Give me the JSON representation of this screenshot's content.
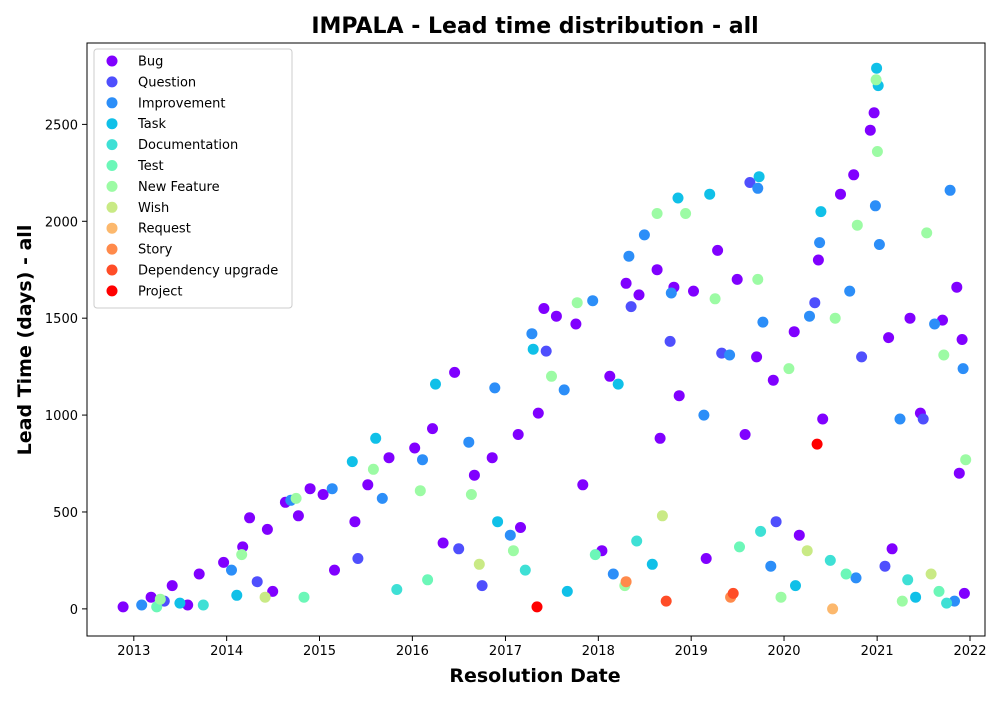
{
  "chart_data": {
    "type": "scatter",
    "title": "IMPALA - Lead time distribution - all",
    "xlabel": "Resolution Date",
    "ylabel": "Lead Time (days) - all",
    "xlim": [
      "2012-07-01",
      "2022-03-01"
    ],
    "ylim": [
      -140,
      2920
    ],
    "x_ticks": [
      "2013",
      "2014",
      "2015",
      "2016",
      "2017",
      "2018",
      "2019",
      "2020",
      "2021",
      "2022"
    ],
    "y_ticks": [
      0,
      500,
      1000,
      1500,
      2000,
      2500
    ],
    "grid": false,
    "legend_position": "top-left",
    "series": [
      {
        "name": "Bug",
        "color": "#8000ff",
        "points": [
          [
            "2012-11-20",
            10
          ],
          [
            "2013-03-10",
            60
          ],
          [
            "2013-06-01",
            120
          ],
          [
            "2013-09-15",
            180
          ],
          [
            "2013-12-20",
            240
          ],
          [
            "2014-03-05",
            320
          ],
          [
            "2014-04-01",
            470
          ],
          [
            "2014-06-10",
            410
          ],
          [
            "2014-08-20",
            550
          ],
          [
            "2014-10-10",
            480
          ],
          [
            "2014-11-25",
            620
          ],
          [
            "2015-01-15",
            590
          ],
          [
            "2015-05-20",
            450
          ],
          [
            "2015-07-10",
            640
          ],
          [
            "2015-10-01",
            780
          ],
          [
            "2016-01-10",
            830
          ],
          [
            "2016-03-20",
            930
          ],
          [
            "2016-06-15",
            1220
          ],
          [
            "2016-09-01",
            690
          ],
          [
            "2016-11-10",
            780
          ],
          [
            "2017-02-20",
            900
          ],
          [
            "2017-05-10",
            1010
          ],
          [
            "2017-06-01",
            1550
          ],
          [
            "2017-07-20",
            1510
          ],
          [
            "2017-10-05",
            1470
          ],
          [
            "2018-02-15",
            1200
          ],
          [
            "2018-04-20",
            1680
          ],
          [
            "2018-06-10",
            1620
          ],
          [
            "2018-08-20",
            1750
          ],
          [
            "2018-10-25",
            1660
          ],
          [
            "2018-11-15",
            1100
          ],
          [
            "2019-01-10",
            1640
          ],
          [
            "2019-04-15",
            1850
          ],
          [
            "2019-07-01",
            1700
          ],
          [
            "2019-09-15",
            1300
          ],
          [
            "2019-11-20",
            1180
          ],
          [
            "2020-02-10",
            1430
          ],
          [
            "2020-05-15",
            1800
          ],
          [
            "2020-08-10",
            2140
          ],
          [
            "2020-10-01",
            2240
          ],
          [
            "2020-12-05",
            2470
          ],
          [
            "2020-12-20",
            2560
          ],
          [
            "2021-02-15",
            1400
          ],
          [
            "2021-05-10",
            1500
          ],
          [
            "2021-06-20",
            1010
          ],
          [
            "2021-09-15",
            1490
          ],
          [
            "2021-11-10",
            1660
          ],
          [
            "2021-12-01",
            1390
          ],
          [
            "2021-11-20",
            700
          ],
          [
            "2013-08-01",
            20
          ],
          [
            "2014-07-01",
            90
          ],
          [
            "2015-03-01",
            200
          ],
          [
            "2016-05-01",
            340
          ],
          [
            "2017-03-01",
            420
          ],
          [
            "2018-01-15",
            300
          ],
          [
            "2019-03-01",
            260
          ],
          [
            "2020-03-01",
            380
          ],
          [
            "2021-03-01",
            310
          ],
          [
            "2021-12-10",
            80
          ],
          [
            "2017-11-01",
            640
          ],
          [
            "2019-08-01",
            900
          ],
          [
            "2020-06-01",
            980
          ],
          [
            "2018-09-01",
            880
          ]
        ]
      },
      {
        "name": "Question",
        "color": "#4f4ffd",
        "points": [
          [
            "2013-05-01",
            40
          ],
          [
            "2014-05-01",
            140
          ],
          [
            "2015-06-01",
            260
          ],
          [
            "2016-07-01",
            310
          ],
          [
            "2017-06-10",
            1330
          ],
          [
            "2018-05-10",
            1560
          ],
          [
            "2018-10-10",
            1380
          ],
          [
            "2019-05-01",
            1320
          ],
          [
            "2019-08-20",
            2200
          ],
          [
            "2020-05-01",
            1580
          ],
          [
            "2020-11-01",
            1300
          ],
          [
            "2021-07-01",
            980
          ],
          [
            "2016-10-01",
            120
          ],
          [
            "2019-12-01",
            450
          ],
          [
            "2021-02-01",
            220
          ]
        ]
      },
      {
        "name": "Improvement",
        "color": "#2c8ef8",
        "points": [
          [
            "2013-02-01",
            20
          ],
          [
            "2014-01-20",
            200
          ],
          [
            "2014-09-10",
            560
          ],
          [
            "2015-02-20",
            620
          ],
          [
            "2015-09-05",
            570
          ],
          [
            "2016-02-10",
            770
          ],
          [
            "2016-08-10",
            860
          ],
          [
            "2016-11-20",
            1140
          ],
          [
            "2017-04-15",
            1420
          ],
          [
            "2017-08-20",
            1130
          ],
          [
            "2017-12-10",
            1590
          ],
          [
            "2018-05-01",
            1820
          ],
          [
            "2018-07-01",
            1930
          ],
          [
            "2018-10-15",
            1630
          ],
          [
            "2019-02-20",
            1000
          ],
          [
            "2019-06-01",
            1310
          ],
          [
            "2019-09-20",
            2170
          ],
          [
            "2019-10-10",
            1480
          ],
          [
            "2020-04-10",
            1510
          ],
          [
            "2020-05-20",
            1890
          ],
          [
            "2020-09-15",
            1640
          ],
          [
            "2020-12-25",
            2080
          ],
          [
            "2021-01-10",
            1880
          ],
          [
            "2021-04-01",
            980
          ],
          [
            "2021-08-15",
            1470
          ],
          [
            "2021-10-15",
            2160
          ],
          [
            "2021-12-05",
            1240
          ],
          [
            "2017-01-20",
            380
          ],
          [
            "2018-03-01",
            180
          ],
          [
            "2019-11-10",
            220
          ],
          [
            "2020-10-10",
            160
          ],
          [
            "2021-11-01",
            40
          ]
        ]
      },
      {
        "name": "Task",
        "color": "#10c0e8",
        "points": [
          [
            "2013-07-01",
            30
          ],
          [
            "2014-02-10",
            70
          ],
          [
            "2015-05-10",
            760
          ],
          [
            "2015-08-10",
            880
          ],
          [
            "2016-04-01",
            1160
          ],
          [
            "2017-04-20",
            1340
          ],
          [
            "2018-03-20",
            1160
          ],
          [
            "2018-11-10",
            2120
          ],
          [
            "2019-03-15",
            2140
          ],
          [
            "2019-09-25",
            2230
          ],
          [
            "2020-05-25",
            2050
          ],
          [
            "2020-12-30",
            2790
          ],
          [
            "2021-01-05",
            2700
          ],
          [
            "2016-12-01",
            450
          ],
          [
            "2018-08-01",
            230
          ],
          [
            "2020-02-15",
            120
          ],
          [
            "2021-06-01",
            60
          ],
          [
            "2017-09-01",
            90
          ]
        ]
      },
      {
        "name": "Documentation",
        "color": "#3ee0d5",
        "points": [
          [
            "2013-10-01",
            20
          ],
          [
            "2015-11-01",
            100
          ],
          [
            "2017-03-20",
            200
          ],
          [
            "2018-06-01",
            350
          ],
          [
            "2019-10-01",
            400
          ],
          [
            "2020-07-01",
            250
          ],
          [
            "2021-05-01",
            150
          ],
          [
            "2021-10-01",
            30
          ]
        ]
      },
      {
        "name": "Test",
        "color": "#6cf7b8",
        "points": [
          [
            "2013-04-01",
            10
          ],
          [
            "2014-11-01",
            60
          ],
          [
            "2016-03-01",
            150
          ],
          [
            "2017-12-20",
            280
          ],
          [
            "2019-07-10",
            320
          ],
          [
            "2020-09-01",
            180
          ],
          [
            "2021-09-01",
            90
          ]
        ]
      },
      {
        "name": "New Feature",
        "color": "#9cfba4",
        "points": [
          [
            "2013-04-15",
            50
          ],
          [
            "2014-03-01",
            280
          ],
          [
            "2014-10-01",
            570
          ],
          [
            "2015-08-01",
            720
          ],
          [
            "2016-02-01",
            610
          ],
          [
            "2016-08-20",
            590
          ],
          [
            "2017-07-01",
            1200
          ],
          [
            "2017-10-10",
            1580
          ],
          [
            "2018-08-20",
            2040
          ],
          [
            "2018-12-10",
            2040
          ],
          [
            "2019-04-05",
            1600
          ],
          [
            "2019-09-20",
            1700
          ],
          [
            "2020-01-20",
            1240
          ],
          [
            "2020-07-20",
            1500
          ],
          [
            "2020-10-15",
            1980
          ],
          [
            "2020-12-28",
            2730
          ],
          [
            "2021-01-02",
            2360
          ],
          [
            "2021-07-15",
            1940
          ],
          [
            "2021-09-20",
            1310
          ],
          [
            "2021-12-15",
            770
          ],
          [
            "2017-02-01",
            300
          ],
          [
            "2018-04-15",
            120
          ],
          [
            "2019-12-20",
            60
          ],
          [
            "2021-04-10",
            40
          ]
        ]
      },
      {
        "name": "Wish",
        "color": "#c9ea85",
        "points": [
          [
            "2014-06-01",
            60
          ],
          [
            "2016-09-20",
            230
          ],
          [
            "2018-09-10",
            480
          ],
          [
            "2020-04-01",
            300
          ],
          [
            "2021-08-01",
            180
          ]
        ]
      },
      {
        "name": "Request",
        "color": "#fcb86d",
        "points": [
          [
            "2020-07-10",
            0
          ]
        ]
      },
      {
        "name": "Story",
        "color": "#ff8a4b",
        "points": [
          [
            "2018-04-20",
            140
          ],
          [
            "2019-06-05",
            60
          ]
        ]
      },
      {
        "name": "Dependency upgrade",
        "color": "#ff4d27",
        "points": [
          [
            "2018-09-25",
            40
          ],
          [
            "2019-06-15",
            80
          ]
        ]
      },
      {
        "name": "Project",
        "color": "#ff0000",
        "points": [
          [
            "2017-05-05",
            10
          ],
          [
            "2020-05-10",
            850
          ]
        ]
      }
    ]
  }
}
